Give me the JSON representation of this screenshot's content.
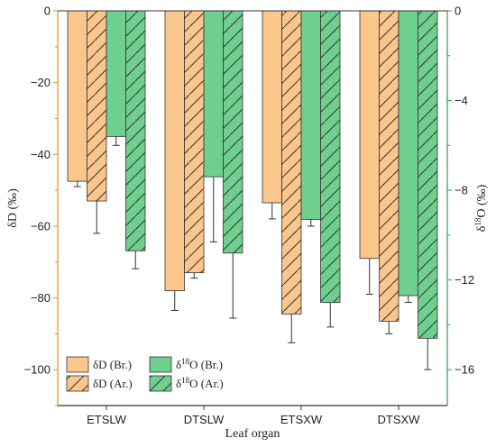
{
  "chart_data": {
    "type": "bar",
    "categories": [
      "ETSLW",
      "DTSLW",
      "ETSXW",
      "DTSXW"
    ],
    "xlabel": "Leaf organ",
    "ylabel_left": "δD (‰)",
    "ylabel_right_prefix": "δ",
    "ylabel_right_sup": "18",
    "ylabel_right_suffix": "O (‰)",
    "ylim_left": [
      -110,
      0
    ],
    "yticks_left": [
      0,
      -20,
      -40,
      -60,
      -80,
      -100
    ],
    "ylim_right": [
      -17.6,
      0
    ],
    "yticks_right": [
      0,
      -4,
      -8,
      -12,
      -16
    ],
    "left_axis_color": "#ee8a1e",
    "right_axis_color": "#2fa04a",
    "series": [
      {
        "name": "δD (Br.)",
        "name_prefix": "δD (Br.)",
        "name_sup": "",
        "name_suffix": "",
        "axis": "left",
        "color": "#fbc68c",
        "hatch": false,
        "values": [
          -47.5,
          -78,
          -53.5,
          -69
        ],
        "errors": [
          1.5,
          5.5,
          4.5,
          10
        ]
      },
      {
        "name": "δD (Ar.)",
        "name_prefix": "δD (Ar.)",
        "name_sup": "",
        "name_suffix": "",
        "axis": "left",
        "color": "#fbc68c",
        "hatch": true,
        "values": [
          -53,
          -73,
          -84.5,
          -86.5
        ],
        "errors": [
          9,
          1.5,
          8,
          3.5
        ]
      },
      {
        "name": "δ18O (Br.)",
        "name_prefix": "δ",
        "name_sup": "18",
        "name_suffix": "O (Br.)",
        "axis": "right",
        "color": "#6fcf8e",
        "hatch": false,
        "values": [
          -5.6,
          -7.4,
          -9.3,
          -12.7
        ],
        "errors": [
          0.4,
          2.9,
          0.3,
          0.3
        ]
      },
      {
        "name": "δ18O (Ar.)",
        "name_prefix": "δ",
        "name_sup": "18",
        "name_suffix": "O (Ar.)",
        "axis": "right",
        "color": "#6fcf8e",
        "hatch": true,
        "values": [
          -10.7,
          -10.8,
          -13,
          -14.6
        ],
        "errors": [
          0.8,
          2.9,
          1.1,
          1.4
        ]
      }
    ],
    "legend_position": "bottom-left",
    "grid": false
  }
}
